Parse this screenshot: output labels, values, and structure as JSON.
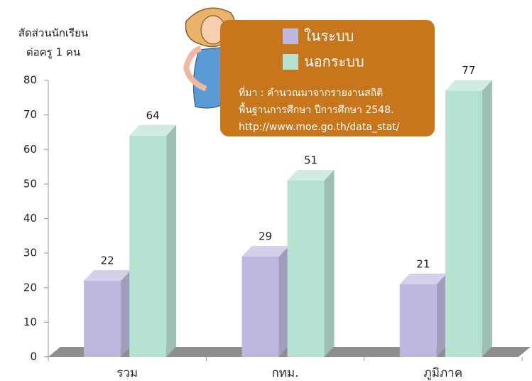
{
  "chart_data": {
    "type": "bar3d",
    "ylabel": [
      "สัดส่วนนักเรียน",
      "ต่อครู 1 คน"
    ],
    "categories": [
      "รวม",
      "กทม.",
      "ภูมิภาค"
    ],
    "series": [
      {
        "name": "ในระบบ",
        "color": "#bcb8dd",
        "values": [
          22,
          29,
          21
        ]
      },
      {
        "name": "นอกระบบ",
        "color": "#b6e2d1",
        "values": [
          64,
          51,
          77
        ]
      }
    ],
    "ylim": [
      0,
      80
    ],
    "yticks": [
      0,
      10,
      20,
      30,
      40,
      50,
      60,
      70,
      80
    ],
    "legend_position": "top-right",
    "note": [
      "ที่มา : คำนวณมาจากรายงานสถิติ",
      "พื้นฐานการศึกษา ปีการศึกษา 2548.",
      "http://www.moe.go.th/data_stat/"
    ]
  }
}
